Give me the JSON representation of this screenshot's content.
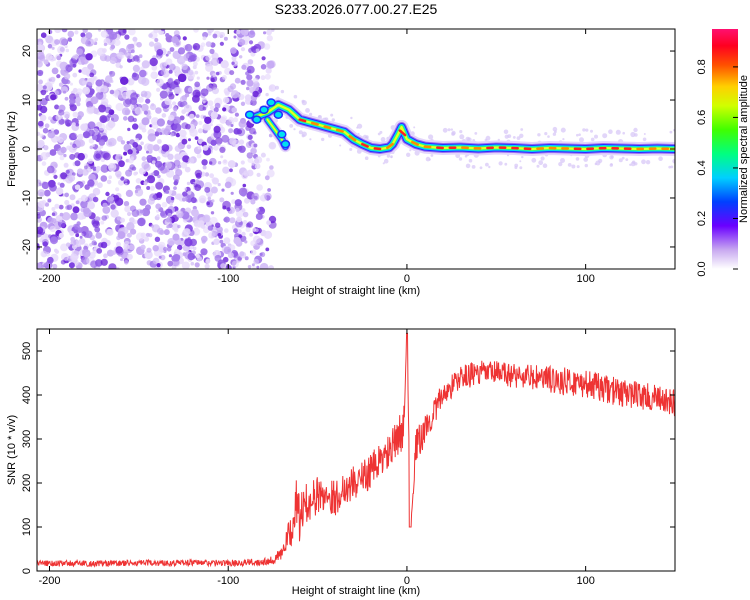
{
  "title": "S233.2026.077.00.27.E25",
  "colors": {
    "snr_line": "#ee3333",
    "scatter": "#8a2be2",
    "ridge_core": "#ee2222",
    "frame": "#000000"
  },
  "chart_data": [
    {
      "type": "heatmap",
      "name": "spectrogram",
      "xlabel": "Height of straight line (km)",
      "ylabel": "Frequency (Hz)",
      "xlim": [
        -207,
        150
      ],
      "ylim": [
        -24.5,
        24.5
      ],
      "xticks": [
        -200,
        -100,
        0,
        100
      ],
      "xtick_labels": [
        "-200",
        "-100",
        "0",
        "100"
      ],
      "yticks": [
        -20,
        -10,
        0,
        10,
        20
      ],
      "ytick_labels": [
        "-20",
        "-10",
        "0",
        "10",
        "20"
      ],
      "noise_region_x": [
        -207,
        -75
      ],
      "ridge": {
        "x": [
          -85,
          -78,
          -72,
          -66,
          -60,
          -55,
          -50,
          -45,
          -40,
          -35,
          -30,
          -25,
          -20,
          -15,
          -10,
          -8,
          -5,
          -3,
          0,
          5,
          10,
          20,
          30,
          40,
          50,
          60,
          70,
          80,
          90,
          100,
          110,
          120,
          130,
          140,
          150
        ],
        "y": [
          6.5,
          7.5,
          9.0,
          8.0,
          6.0,
          5.5,
          5.0,
          4.5,
          4.0,
          3.5,
          2.0,
          1.0,
          0.2,
          0.0,
          0.3,
          1.0,
          3.0,
          4.5,
          2.0,
          1.0,
          0.5,
          0.2,
          0.3,
          0.1,
          0.3,
          0.2,
          0.0,
          0.2,
          0.1,
          0.0,
          0.2,
          0.1,
          0.0,
          0.1,
          0.0
        ]
      },
      "side_branch": {
        "x": [
          -78,
          -74,
          -70,
          -68
        ],
        "y": [
          6.0,
          4.0,
          2.0,
          0.5
        ]
      },
      "colorbar": {
        "label": "Normalized spectral amplitude",
        "range": [
          0,
          0.95
        ],
        "ticks": [
          0.0,
          0.2,
          0.4,
          0.6,
          0.8
        ],
        "tick_labels": [
          "0.0",
          "0.2",
          "0.4",
          "0.6",
          "0.8"
        ]
      }
    },
    {
      "type": "line",
      "name": "snr",
      "xlabel": "Height of straight line (km)",
      "ylabel": "SNR (10 * v/v)",
      "xlim": [
        -207,
        150
      ],
      "ylim": [
        0,
        550
      ],
      "xticks": [
        -200,
        -100,
        0,
        100
      ],
      "xtick_labels": [
        "-200",
        "-100",
        "0",
        "100"
      ],
      "yticks": [
        0,
        100,
        200,
        300,
        400,
        500
      ],
      "ytick_labels": [
        "0",
        "100",
        "200",
        "300",
        "400",
        "500"
      ],
      "series": [
        {
          "name": "SNR",
          "x": [
            -207,
            -180,
            -150,
            -120,
            -100,
            -85,
            -75,
            -70,
            -65,
            -62,
            -60,
            -58,
            -55,
            -50,
            -45,
            -40,
            -35,
            -30,
            -25,
            -20,
            -15,
            -10,
            -5,
            -2,
            0,
            2,
            5,
            10,
            15,
            20,
            25,
            30,
            40,
            50,
            60,
            70,
            80,
            90,
            100,
            110,
            120,
            130,
            140,
            150
          ],
          "values": [
            18,
            17,
            18,
            19,
            18,
            20,
            25,
            40,
            90,
            150,
            120,
            140,
            160,
            170,
            175,
            165,
            190,
            200,
            210,
            230,
            250,
            270,
            300,
            330,
            540,
            100,
            280,
            320,
            360,
            400,
            420,
            440,
            450,
            450,
            445,
            440,
            435,
            430,
            425,
            415,
            405,
            400,
            390,
            380
          ],
          "noise": [
            7,
            7,
            7,
            7,
            7,
            8,
            10,
            15,
            40,
            60,
            55,
            50,
            45,
            45,
            40,
            40,
            40,
            40,
            40,
            40,
            40,
            40,
            45,
            50,
            0,
            0,
            40,
            35,
            30,
            30,
            28,
            28,
            28,
            28,
            30,
            30,
            32,
            32,
            32,
            32,
            32,
            32,
            32,
            32
          ]
        }
      ]
    }
  ]
}
